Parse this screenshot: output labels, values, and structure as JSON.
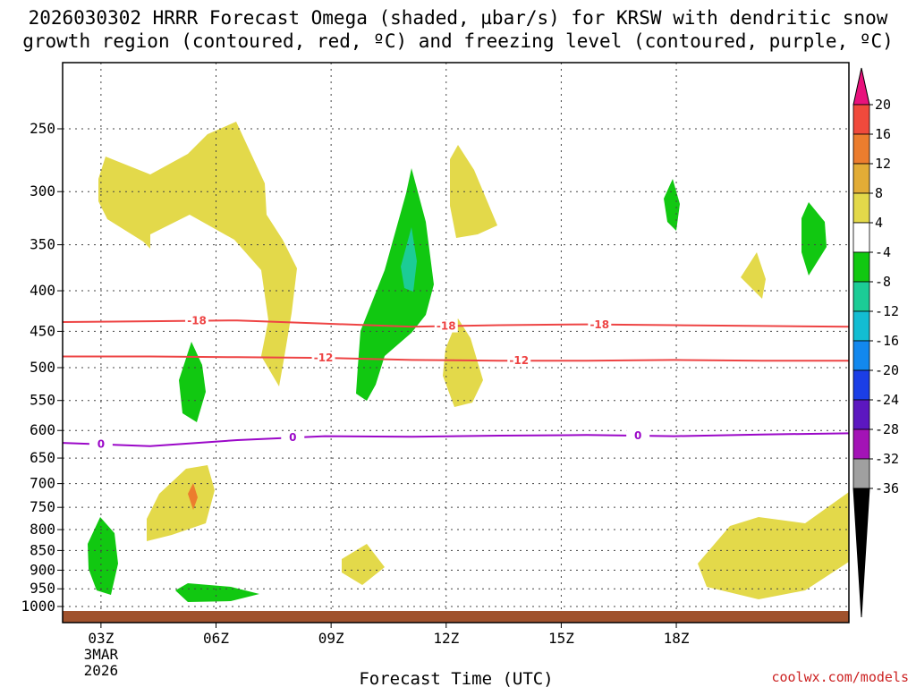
{
  "chart_data": {
    "type": "time-height",
    "title_line1": "2026030302 HRRR Forecast Omega (shaded, µbar/s) for KRSW with dendritic snow",
    "title_line2": "growth region (contoured, red, ºC) and freezing level (contoured, purple, ºC)",
    "xlabel": "Forecast Time (UTC)",
    "x_range_hours": [
      2,
      22.5
    ],
    "x_ticks": [
      {
        "hour": 3,
        "label": "03Z",
        "sub1": "3MAR",
        "sub2": "2026"
      },
      {
        "hour": 6,
        "label": "06Z"
      },
      {
        "hour": 9,
        "label": "09Z"
      },
      {
        "hour": 12,
        "label": "12Z"
      },
      {
        "hour": 15,
        "label": "15Z"
      },
      {
        "hour": 18,
        "label": "18Z"
      }
    ],
    "y_ticks_hPa": [
      250,
      300,
      350,
      400,
      450,
      500,
      550,
      600,
      650,
      700,
      750,
      800,
      850,
      900,
      950,
      1000
    ],
    "colorbar": {
      "levels": [
        "20",
        "16",
        "12",
        "8",
        "4",
        "-4",
        "-8",
        "-12",
        "-16",
        "-20",
        "-24",
        "-28",
        "-32",
        "-36"
      ],
      "colors": [
        "#e8127c",
        "#f04a3c",
        "#ec7d2e",
        "#e2ac36",
        "#e3d94a",
        "#ffffff",
        "#11c811",
        "#1ccc96",
        "#13bdd2",
        "#1288ee",
        "#1b3ee6",
        "#5c17c0",
        "#a313b6",
        "#a0a0a0",
        "#000000"
      ]
    },
    "contours": [
      {
        "name": "dendritic",
        "label": "-18",
        "color": "#ee4444",
        "pressure_hPa": [
          438,
          437,
          436,
          440,
          444,
          442,
          441,
          442,
          443,
          444
        ]
      },
      {
        "name": "dendritic",
        "label": "-12",
        "color": "#ee4444",
        "pressure_hPa": [
          484,
          484,
          485,
          486,
          489,
          490,
          490,
          489,
          490,
          490
        ]
      },
      {
        "name": "freezing_level",
        "label": "0",
        "color": "#9b08c8",
        "pressure_hPa": [
          622,
          628,
          617,
          610,
          611,
          609,
          608,
          610,
          607,
          605
        ]
      }
    ],
    "omega_regions": [
      {
        "value": 4,
        "color": "#e3d94a",
        "description": "upper-level ascent near 03Z-07Z, 250-500 hPa"
      },
      {
        "value": -4,
        "color": "#11c811",
        "description": "descent near 09Z-10Z, 290-540 hPa"
      }
    ]
  },
  "credit": "coolwx.com/models"
}
